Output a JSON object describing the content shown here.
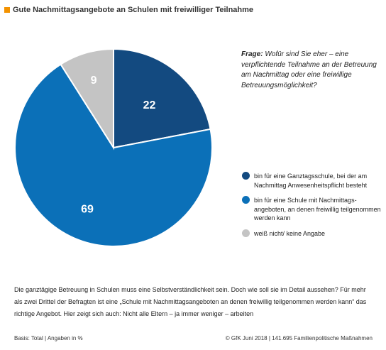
{
  "title": "Gute Nachmittagsangebote an Schulen mit freiwilliger Teilnahme",
  "question": {
    "label": "Frage:",
    "text": "Wofür sind Sie eher – eine verpflichtende Teilnahme an der Betreuung am Nachmittag oder eine freiwillige Betreuungsmöglichkeit?"
  },
  "chart_data": {
    "type": "pie",
    "slices": [
      {
        "label": "bin für eine Ganztagsschule, bei der am Nachmittag Anwesenheitspflicht besteht",
        "value": 22,
        "color": "#134a80"
      },
      {
        "label": "bin für eine Schule mit Nachmittags-angeboten, an denen freiwillig teilgenommen werden kann",
        "value": 69,
        "color": "#0b70b8"
      },
      {
        "label": "weiß nicht/ keine Angabe",
        "value": 9,
        "color": "#c4c4c4"
      }
    ]
  },
  "body_text": "Die ganztägige Betreuung in Schulen muss eine Selbstverständlichkeit sein. Doch wie soll sie im Detail aussehen? Für mehr als zwei Drittel der Befragten ist eine „Schule mit Nachmittagsangeboten an denen freiwillig teilgenommen werden kann“ das richtige Angebot. Hier zeigt sich auch: Nicht alle Eltern – ja immer weniger – arbeiten",
  "footer": {
    "left": "Basis: Total | Angaben in %",
    "right": "© GfK Juni 2018 | 141.695 Familienpolitische Maßnahmen"
  },
  "colors": {
    "accent": "#f39200"
  }
}
